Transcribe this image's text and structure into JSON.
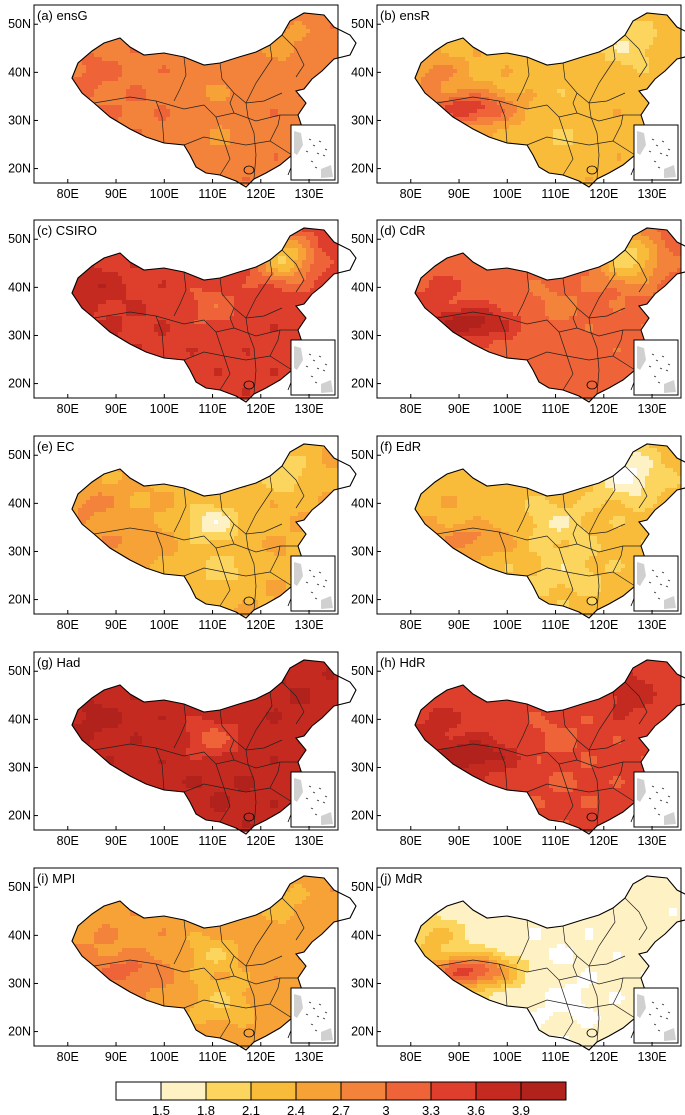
{
  "chart_data": {
    "type": "heatmap",
    "region": "China",
    "x_ticks": [
      "80E",
      "90E",
      "100E",
      "110E",
      "120E",
      "130E"
    ],
    "y_ticks": [
      "50N",
      "40N",
      "30N",
      "20N"
    ],
    "x_tick_values": [
      80,
      90,
      100,
      110,
      120,
      130
    ],
    "y_tick_values": [
      50,
      40,
      30,
      20
    ],
    "xlim": [
      73,
      136
    ],
    "ylim": [
      17,
      54
    ],
    "panels": [
      {
        "label": "(a) ensG",
        "field": {
          "base": 2.9,
          "west": 0.2,
          "plateau": 0.1,
          "south": -0.2,
          "northeast": -0.3,
          "central": -0.2
        }
      },
      {
        "label": "(b) ensR",
        "field": {
          "base": 2.3,
          "west": 0.5,
          "plateau": 1.2,
          "south": -0.2,
          "northeast": -0.5,
          "central": -0.1
        }
      },
      {
        "label": "(c) CSIRO",
        "field": {
          "base": 3.5,
          "west": 0.4,
          "plateau": 0.1,
          "south": 0.0,
          "northeast": -1.4,
          "central": -0.4
        }
      },
      {
        "label": "(d) CdR",
        "field": {
          "base": 3.1,
          "west": 0.3,
          "plateau": 1.0,
          "south": 0.1,
          "northeast": -1.2,
          "central": -0.2
        }
      },
      {
        "label": "(e) EC",
        "field": {
          "base": 2.4,
          "west": 0.4,
          "plateau": 0.3,
          "south": -0.4,
          "northeast": -0.5,
          "central": -0.8
        }
      },
      {
        "label": "(f) EdR",
        "field": {
          "base": 2.2,
          "west": 0.2,
          "plateau": 0.6,
          "south": -0.3,
          "northeast": -0.8,
          "central": -0.4
        }
      },
      {
        "label": "(g) Had",
        "field": {
          "base": 3.8,
          "west": 0.2,
          "plateau": 0.0,
          "south": 0.1,
          "northeast": 0.1,
          "central": -0.6
        }
      },
      {
        "label": "(h) HdR",
        "field": {
          "base": 3.4,
          "west": 0.3,
          "plateau": 0.8,
          "south": -0.1,
          "northeast": 0.4,
          "central": -0.2
        }
      },
      {
        "label": "(i) MPI",
        "field": {
          "base": 2.6,
          "west": 0.1,
          "plateau": 0.5,
          "south": -0.5,
          "northeast": -0.3,
          "central": -0.5
        }
      },
      {
        "label": "(j) MdR",
        "field": {
          "base": 1.6,
          "west": 0.6,
          "plateau": 1.8,
          "south": -0.2,
          "northeast": 0.1,
          "central": -0.1
        }
      }
    ],
    "colorbar": {
      "levels": [
        "1.5",
        "1.8",
        "2.1",
        "2.4",
        "2.7",
        "3",
        "3.3",
        "3.6",
        "3.9"
      ],
      "level_values": [
        1.5,
        1.8,
        2.1,
        2.4,
        2.7,
        3.0,
        3.3,
        3.6,
        3.9
      ],
      "colors": [
        "#ffffff",
        "#fef1c4",
        "#fcd55e",
        "#f9bc3a",
        "#f6a236",
        "#f3833a",
        "#ee6337",
        "#de3f2c",
        "#c52a20",
        "#b0221b"
      ]
    }
  }
}
